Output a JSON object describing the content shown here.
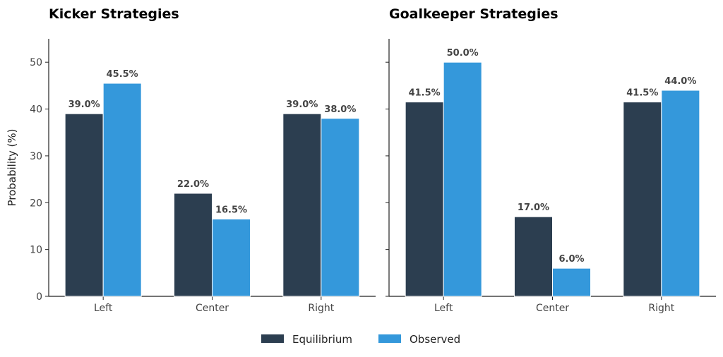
{
  "chart_data": [
    {
      "type": "bar",
      "title": "Kicker Strategies",
      "ylabel": "Probability (%)",
      "xlabel": "",
      "ylim": [
        0,
        55
      ],
      "yticks": [
        0,
        10,
        20,
        30,
        40,
        50
      ],
      "categories": [
        "Left",
        "Center",
        "Right"
      ],
      "series": [
        {
          "name": "Equilibrium",
          "color": "#2c3e50",
          "values": [
            39.0,
            22.0,
            39.0
          ],
          "labels": [
            "39.0%",
            "22.0%",
            "39.0%"
          ]
        },
        {
          "name": "Observed",
          "color": "#3498db",
          "values": [
            45.5,
            16.5,
            38.0
          ],
          "labels": [
            "45.5%",
            "16.5%",
            "38.0%"
          ]
        }
      ]
    },
    {
      "type": "bar",
      "title": "Goalkeeper Strategies",
      "ylabel": "",
      "xlabel": "",
      "ylim": [
        0,
        55
      ],
      "yticks": [
        0,
        10,
        20,
        30,
        40,
        50
      ],
      "categories": [
        "Left",
        "Center",
        "Right"
      ],
      "series": [
        {
          "name": "Equilibrium",
          "color": "#2c3e50",
          "values": [
            41.5,
            17.0,
            41.5
          ],
          "labels": [
            "41.5%",
            "17.0%",
            "41.5%"
          ]
        },
        {
          "name": "Observed",
          "color": "#3498db",
          "values": [
            50.0,
            6.0,
            44.0
          ],
          "labels": [
            "50.0%",
            "6.0%",
            "44.0%"
          ]
        }
      ]
    }
  ],
  "legend": {
    "placement": "bottom-center",
    "items": [
      {
        "label": "Equilibrium",
        "color": "#2c3e50"
      },
      {
        "label": "Observed",
        "color": "#3498db"
      }
    ]
  }
}
